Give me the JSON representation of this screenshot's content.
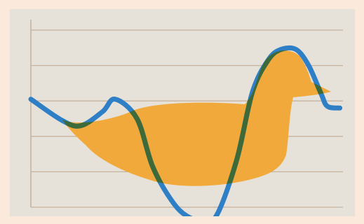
{
  "chart_data": {
    "type": "line",
    "title": "",
    "xlabel": "",
    "ylabel": "",
    "xlim": [
      0,
      100
    ],
    "ylim": [
      0,
      100
    ],
    "y_gridlines": [
      0,
      20,
      40,
      60,
      80,
      100
    ],
    "grid": true,
    "series": [
      {
        "color": "#2f7fc6",
        "overlap_color": "#3e6a3a",
        "x": [
          0,
          10,
          16,
          23,
          27,
          34,
          39,
          45,
          50,
          56,
          60,
          66,
          71,
          76,
          80,
          85,
          89,
          93,
          95,
          99
        ],
        "values": [
          61,
          49,
          46,
          54,
          61,
          50,
          23,
          4,
          -5,
          -8,
          -3,
          27,
          65,
          83,
          89,
          89,
          80,
          64,
          57,
          56
        ]
      }
    ],
    "background_figure": {
      "icon": "duck-silhouette-icon",
      "color": "#f0a93a"
    },
    "colors": {
      "page_background": "#fbe9dc",
      "panel_background": "#e6e2d9",
      "gridline": "#c6b39e",
      "axis": "#c6b39e"
    }
  }
}
